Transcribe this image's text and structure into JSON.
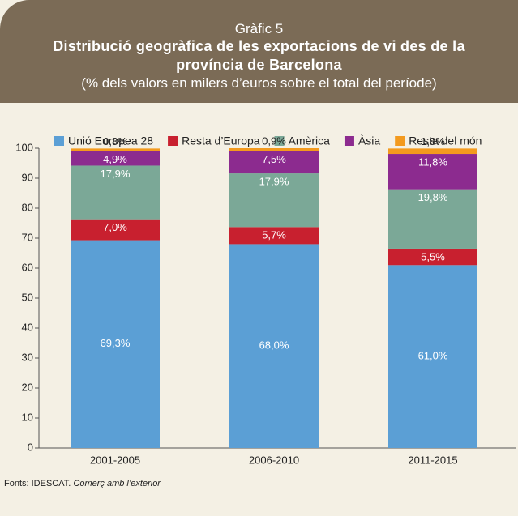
{
  "label": "Gràfic 5",
  "chart_data": {
    "type": "stacked_bar",
    "title": "Distribució geogràfica de les exportacions de vi des de la província de Barcelona",
    "subtitle": "(% dels valors en milers d’euros sobre el total del període)",
    "categories": [
      "2001-2005",
      "2006-2010",
      "2011-2015"
    ],
    "series": [
      {
        "name": "Unió Europea 28",
        "color": "#5b9fd5",
        "values": [
          69.3,
          68.0,
          61.0
        ],
        "value_labels": [
          "69,3%",
          "68,0%",
          "61,0%"
        ]
      },
      {
        "name": "Resta d’Europa",
        "color": "#c8202f",
        "values": [
          7.0,
          5.7,
          5.5
        ],
        "value_labels": [
          "7,0%",
          "5,7%",
          "5,5%"
        ]
      },
      {
        "name": "Amèrica",
        "color": "#7ba897",
        "values": [
          17.9,
          17.9,
          19.8
        ],
        "value_labels": [
          "17,9%",
          "17,9%",
          "19,8%"
        ]
      },
      {
        "name": "Àsia",
        "color": "#8c2b8f",
        "values": [
          4.9,
          7.5,
          11.8
        ],
        "value_labels": [
          "4,9%",
          "7,5%",
          "11,8%"
        ]
      },
      {
        "name": "Resta del món",
        "color": "#f39a1e",
        "values": [
          0.8,
          0.9,
          1.8
        ],
        "value_labels": [
          "0,8%",
          "0,9%",
          "1,8%"
        ]
      }
    ],
    "ylim": [
      0,
      100
    ],
    "yticks": [
      0,
      10,
      20,
      30,
      40,
      50,
      60,
      70,
      80,
      90,
      100
    ],
    "legend": "top"
  },
  "source": {
    "text": "Fonts: IDESCAT.",
    "italic": "Comerç amb l’exterior"
  }
}
